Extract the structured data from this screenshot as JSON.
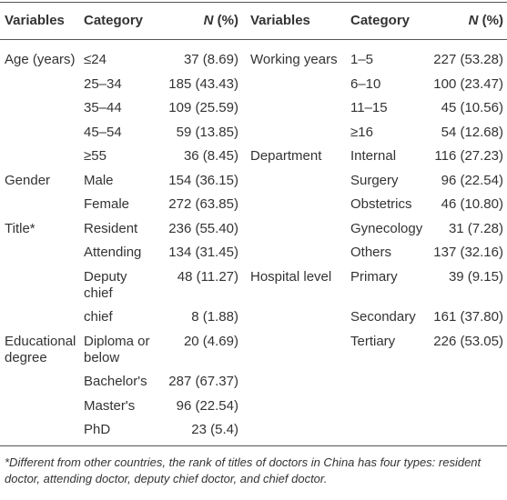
{
  "table": {
    "header": {
      "variables_left": "Variables",
      "category_left": "Category",
      "n_symbol_left": "N",
      "n_unit_left": "(%)",
      "variables_right": "Variables",
      "category_right": "Category",
      "n_symbol_right": "N",
      "n_unit_right": "(%)"
    },
    "rows": [
      [
        "Age (years)",
        "≤24",
        "37 (8.69)",
        "Working years",
        "1–5",
        "227 (53.28)"
      ],
      [
        null,
        "25–34",
        "185 (43.43)",
        null,
        "6–10",
        "100 (23.47)"
      ],
      [
        null,
        "35–44",
        "109 (25.59)",
        null,
        "11–15",
        "45 (10.56)"
      ],
      [
        null,
        "45–54",
        "59 (13.85)",
        null,
        "≥16",
        "54 (12.68)"
      ],
      [
        null,
        "≥55",
        "36 (8.45)",
        "Department",
        "Internal",
        "116 (27.23)"
      ],
      [
        "Gender",
        "Male",
        "154 (36.15)",
        null,
        "Surgery",
        "96 (22.54)"
      ],
      [
        null,
        "Female",
        "272 (63.85)",
        null,
        "Obstetrics",
        "46 (10.80)"
      ],
      [
        "Title*",
        "Resident",
        "236 (55.40)",
        null,
        "Gynecology",
        "31 (7.28)"
      ],
      [
        null,
        "Attending",
        "134 (31.45)",
        null,
        "Others",
        "137 (32.16)"
      ],
      [
        null,
        "Deputy chief",
        "48 (11.27)",
        "Hospital level",
        "Primary",
        "39 (9.15)"
      ],
      [
        null,
        "chief",
        "8 (1.88)",
        null,
        "Secondary",
        "161 (37.80)"
      ],
      [
        "Educational degree",
        "Diploma or below",
        "20 (4.69)",
        null,
        "Tertiary",
        "226 (53.05)"
      ],
      [
        null,
        "Bachelor's",
        "287 (67.37)",
        null,
        null,
        null
      ],
      [
        null,
        "Master's",
        "96 (22.54)",
        null,
        null,
        null
      ],
      [
        null,
        "PhD",
        "23 (5.4)",
        null,
        null,
        null
      ]
    ]
  },
  "footnote": "*Different from other countries, the rank of titles of doctors in China has four types: resident doctor, attending doctor, deputy chief doctor, and chief doctor."
}
